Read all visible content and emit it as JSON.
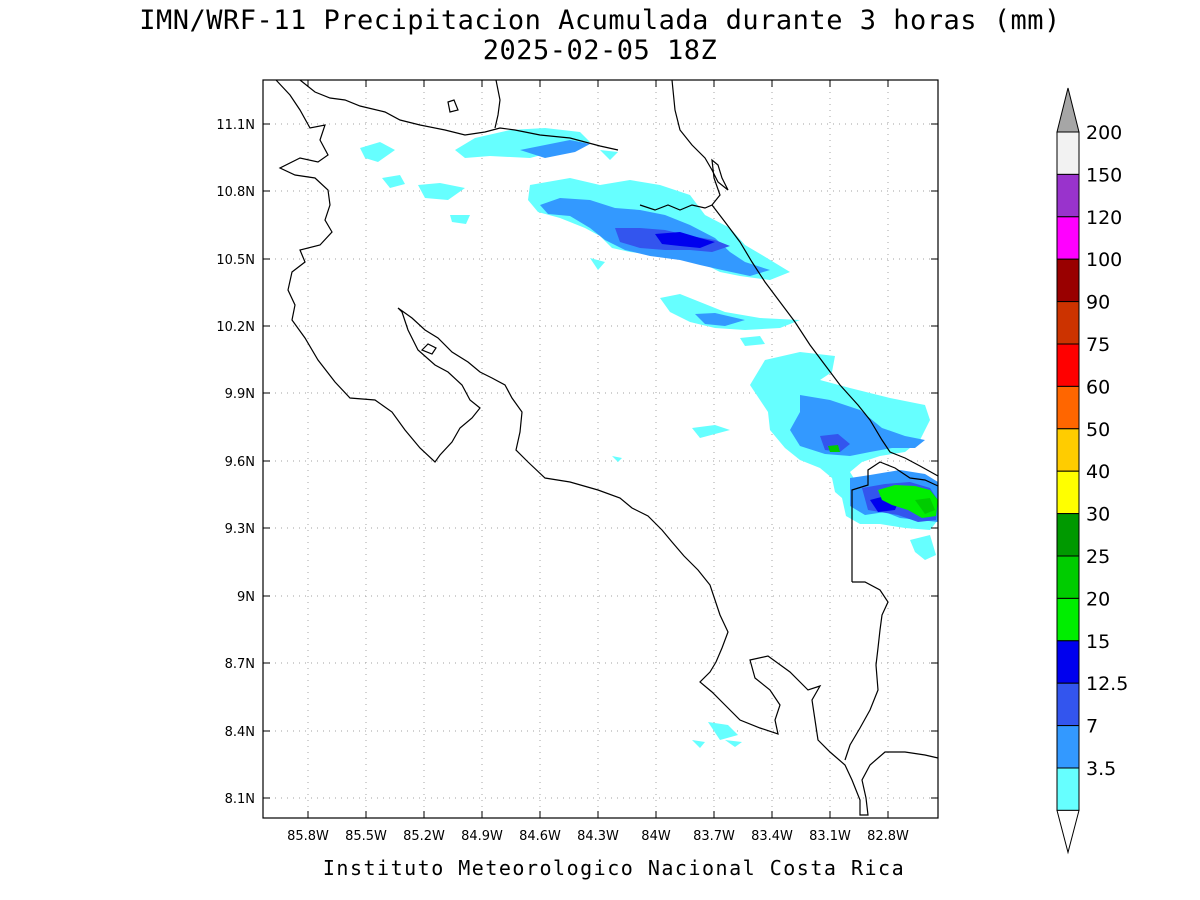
{
  "title": {
    "line1": "IMN/WRF-11 Precipitacion Acumulada durante 3 horas (mm)",
    "line2": "2025-02-05 18Z"
  },
  "footer": "Instituto Meteorologico Nacional Costa Rica",
  "map": {
    "type": "precipitation-contour-map",
    "grid": true,
    "lon_range": [
      -86.0,
      -82.6
    ],
    "lat_range": [
      8.0,
      11.3
    ],
    "x_tick_labels": [
      "85.8W",
      "85.5W",
      "85.2W",
      "84.9W",
      "84.6W",
      "84.3W",
      "84W",
      "83.7W",
      "83.4W",
      "83.1W",
      "82.8W"
    ],
    "y_tick_labels": [
      "11.1N",
      "10.8N",
      "10.5N",
      "10.2N",
      "9.9N",
      "9.6N",
      "9.3N",
      "9N",
      "8.7N",
      "8.4N",
      "8.1N"
    ]
  },
  "colorbar": {
    "levels": [
      "3.5",
      "7",
      "12.5",
      "15",
      "20",
      "25",
      "30",
      "40",
      "50",
      "60",
      "75",
      "90",
      "100",
      "120",
      "150",
      "200"
    ],
    "colors": [
      "#66ffff",
      "#3399ff",
      "#3355ee",
      "#0000ee",
      "#00ee00",
      "#00cc00",
      "#009900",
      "#ffff00",
      "#ffcc00",
      "#ff6600",
      "#ff0000",
      "#cc3300",
      "#990000",
      "#ff00ff",
      "#9933cc",
      "#f2f2f2"
    ],
    "top_arrow_color": "#a6a6a6",
    "bottom_arrow_color": "#ffffff"
  }
}
